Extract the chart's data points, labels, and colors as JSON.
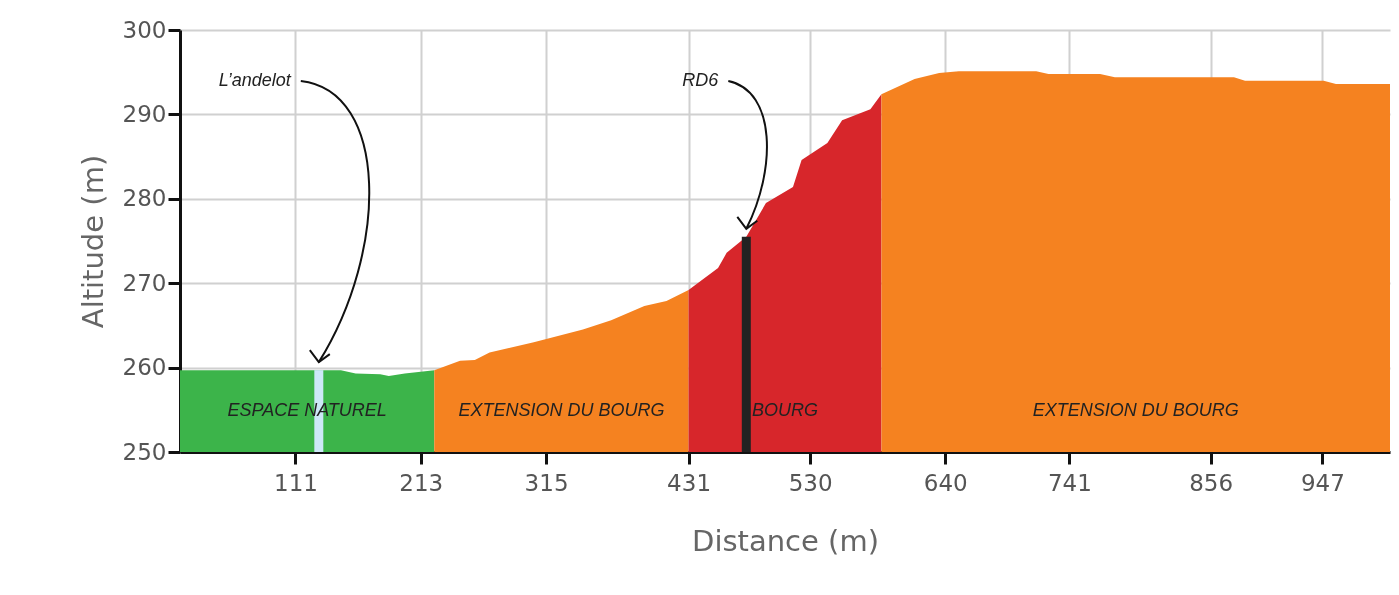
{
  "chart_data": {
    "type": "area",
    "xlabel": "Distance (m)",
    "ylabel": "Altitude (m)",
    "xlim": [
      17,
      1002
    ],
    "ylim": [
      250,
      300
    ],
    "xticks": [
      111,
      213,
      315,
      431,
      530,
      640,
      741,
      856,
      947
    ],
    "yticks": [
      250,
      260,
      270,
      280,
      290,
      300
    ],
    "grid": true,
    "series": [
      {
        "name": "ESPACE NATUREL",
        "color": "#3cb44a",
        "x": [
          17,
          148,
          160,
          180,
          187,
          200,
          224
        ],
        "values": [
          259.7,
          259.7,
          259.3,
          259.2,
          259.0,
          259.3,
          259.7
        ]
      },
      {
        "name": "EXTENSION DU BOURG",
        "color": "#f58220",
        "x": [
          224,
          245,
          257,
          269,
          305,
          345,
          368,
          395,
          413,
          431
        ],
        "values": [
          259.7,
          260.8,
          260.9,
          261.8,
          263.0,
          264.5,
          265.6,
          267.3,
          267.9,
          269.2
        ]
      },
      {
        "name": "BOURG",
        "color": "#d7262b",
        "x": [
          431,
          455,
          462,
          478,
          494,
          516,
          523,
          544,
          556,
          579,
          588
        ],
        "values": [
          269.2,
          271.8,
          273.6,
          275.5,
          279.5,
          281.4,
          284.6,
          286.6,
          289.3,
          290.6,
          292.4
        ]
      },
      {
        "name": "EXTENSION DU BOURG",
        "color": "#f58220",
        "x": [
          588,
          615,
          635,
          651,
          714,
          724,
          766,
          778,
          875,
          884,
          948,
          958,
          1002
        ],
        "values": [
          292.4,
          294.2,
          294.9,
          295.1,
          295.1,
          294.8,
          294.8,
          294.4,
          294.4,
          294.0,
          294.0,
          293.6,
          293.6
        ]
      }
    ],
    "ref_lines": [
      {
        "axis": "x",
        "value": 130,
        "label": "L’andelot",
        "color": "#cde8f8"
      },
      {
        "axis": "x",
        "value": 478,
        "label": "RD6",
        "color": "#222222"
      }
    ]
  }
}
